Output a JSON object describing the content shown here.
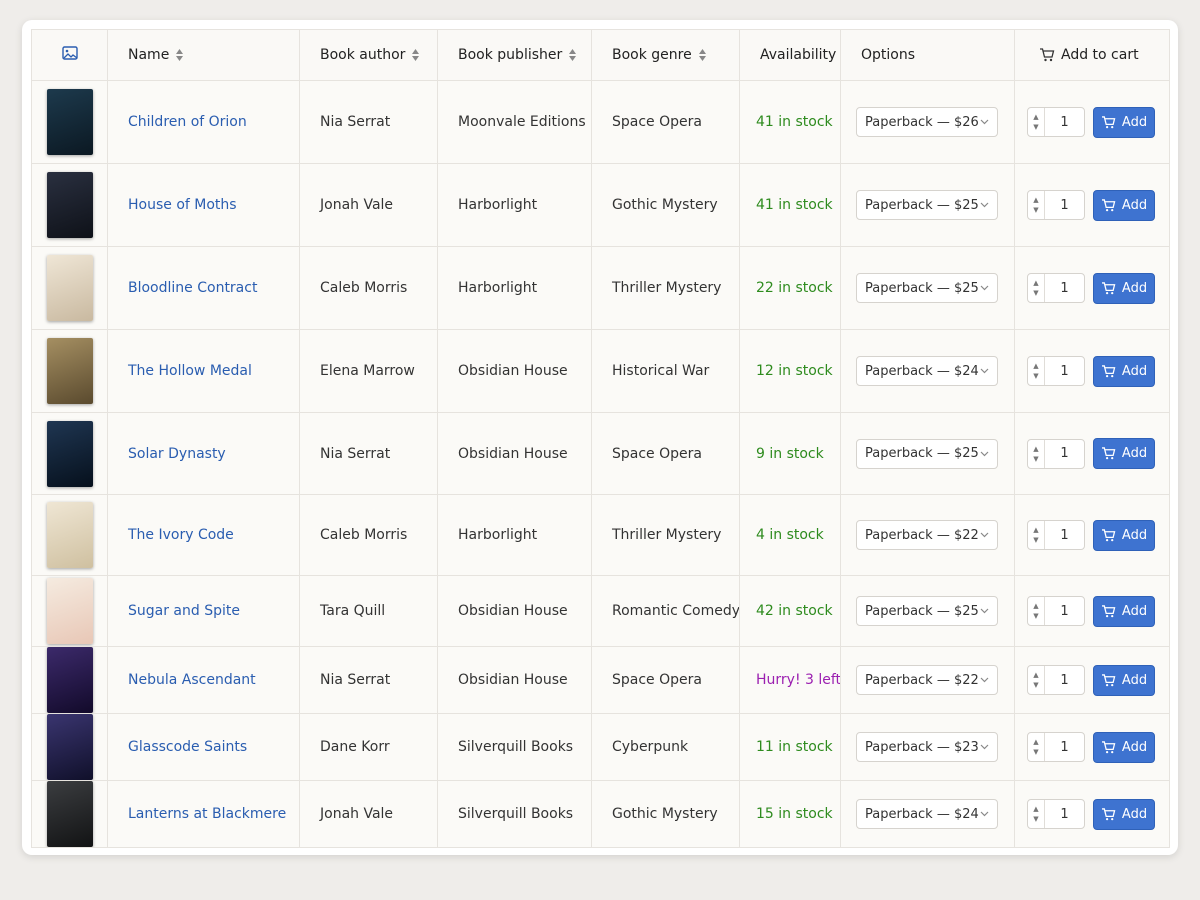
{
  "table": {
    "headers": {
      "name": "Name",
      "author": "Book author",
      "publisher": "Book publisher",
      "genre": "Book genre",
      "availability": "Availability",
      "options": "Options",
      "cart": "Add to cart"
    },
    "add_label": "Add",
    "rows": [
      {
        "name": "Children of Orion",
        "author": "Nia Serrat",
        "publisher": "Moonvale Editions",
        "genre": "Space Opera",
        "availability": "41 in stock",
        "availability_color": "#2e8b1e",
        "option": "Paperback — $26",
        "quantity": 1
      },
      {
        "name": "House of Moths",
        "author": "Jonah Vale",
        "publisher": "Harborlight",
        "genre": "Gothic Mystery",
        "availability": "41 in stock",
        "availability_color": "#2e8b1e",
        "option": "Paperback — $25",
        "quantity": 1
      },
      {
        "name": "Bloodline Contract",
        "author": "Caleb Morris",
        "publisher": "Harborlight",
        "genre": "Thriller Mystery",
        "availability": "22 in stock",
        "availability_color": "#2e8b1e",
        "option": "Paperback — $25",
        "quantity": 1
      },
      {
        "name": "The Hollow Medal",
        "author": "Elena Marrow",
        "publisher": "Obsidian House",
        "genre": "Historical War",
        "availability": "12 in stock",
        "availability_color": "#2e8b1e",
        "option": "Paperback — $24",
        "quantity": 1
      },
      {
        "name": "Solar Dynasty",
        "author": "Nia Serrat",
        "publisher": "Obsidian House",
        "genre": "Space Opera",
        "availability": "9 in stock",
        "availability_color": "#2e8b1e",
        "option": "Paperback — $25",
        "quantity": 1
      },
      {
        "name": "The Ivory Code",
        "author": "Caleb Morris",
        "publisher": "Harborlight",
        "genre": "Thriller Mystery",
        "availability": "4 in stock",
        "availability_color": "#2e8b1e",
        "option": "Paperback — $22",
        "quantity": 1
      },
      {
        "name": "Sugar and Spite",
        "author": "Tara Quill",
        "publisher": "Obsidian House",
        "genre": "Romantic Comedy",
        "availability": "42 in stock",
        "availability_color": "#2e8b1e",
        "option": "Paperback — $25",
        "quantity": 1
      },
      {
        "name": "Nebula Ascendant",
        "author": "Nia Serrat",
        "publisher": "Obsidian House",
        "genre": "Space Opera",
        "availability": "Hurry! 3 left",
        "availability_color": "#9b1fb0",
        "option": "Paperback — $22",
        "quantity": 1
      },
      {
        "name": "Glasscode Saints",
        "author": "Dane Korr",
        "publisher": "Silverquill Books",
        "genre": "Cyberpunk",
        "availability": "11 in stock",
        "availability_color": "#2e8b1e",
        "option": "Paperback — $23",
        "quantity": 1
      },
      {
        "name": "Lanterns at Blackmere",
        "author": "Jonah Vale",
        "publisher": "Silverquill Books",
        "genre": "Gothic Mystery",
        "availability": "15 in stock",
        "availability_color": "#2e8b1e",
        "option": "Paperback — $24",
        "quantity": 1
      }
    ]
  }
}
